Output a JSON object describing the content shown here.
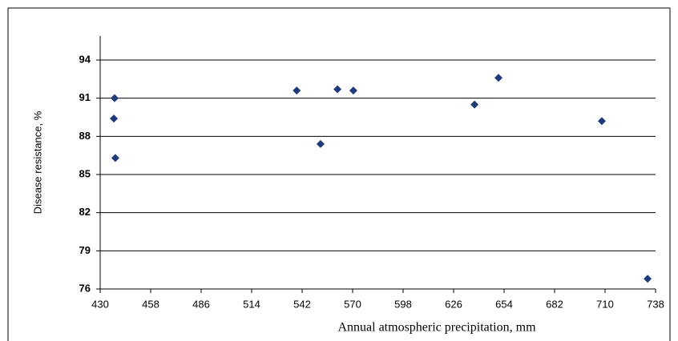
{
  "chart_data": {
    "type": "scatter",
    "x_label": "Annual atmospheric precipitation, mm",
    "y_label": "Disease resistance, %",
    "x": [
      438,
      437.6,
      438.4,
      539,
      552.2,
      561.6,
      570.4,
      637.6,
      650.9,
      708.2,
      733.6
    ],
    "values": [
      91.0,
      89.4,
      86.3,
      91.6,
      87.4,
      91.7,
      91.6,
      90.5,
      92.6,
      89.2,
      76.8
    ],
    "color": "#1f3a7a",
    "xlim": [
      430,
      738
    ],
    "xticks": [
      430,
      458,
      486,
      514,
      542,
      570,
      598,
      626,
      654,
      682,
      710,
      738
    ],
    "ylim": [
      76,
      94
    ],
    "yticks": [
      76,
      79,
      82,
      85,
      88,
      91,
      94
    ],
    "grid": true
  }
}
